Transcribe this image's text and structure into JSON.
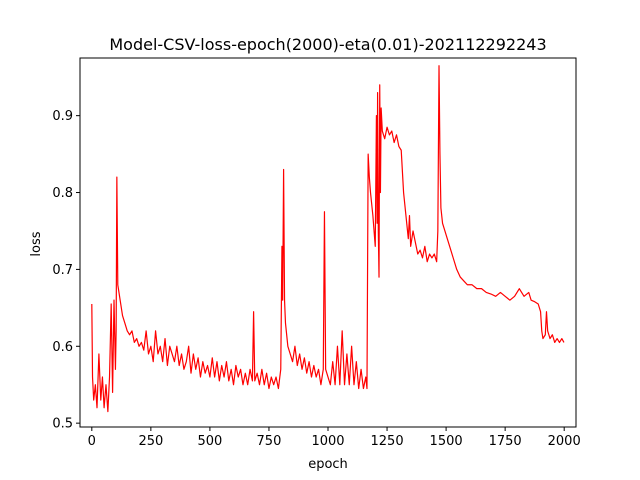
{
  "chart_data": {
    "type": "line",
    "title": "Model-CSV-loss-epoch(2000)-eta(0.01)-202112292243",
    "xlabel": "epoch",
    "ylabel": "loss",
    "xlim": [
      -50,
      2050
    ],
    "ylim": [
      0.495,
      0.975
    ],
    "x_ticks": [
      0,
      250,
      500,
      750,
      1000,
      1250,
      1500,
      1750,
      2000
    ],
    "x_tick_labels": [
      "0",
      "250",
      "500",
      "750",
      "1000",
      "1250",
      "1500",
      "1750",
      "2000"
    ],
    "y_ticks": [
      0.5,
      0.6,
      0.7,
      0.8,
      0.9
    ],
    "y_tick_labels": [
      "0.5",
      "0.6",
      "0.7",
      "0.8",
      "0.9"
    ],
    "grid": false,
    "legend": "none",
    "series": [
      {
        "color": "#ff0000",
        "points": [
          [
            0,
            0.655
          ],
          [
            3,
            0.56
          ],
          [
            8,
            0.53
          ],
          [
            15,
            0.55
          ],
          [
            22,
            0.52
          ],
          [
            30,
            0.59
          ],
          [
            38,
            0.53
          ],
          [
            45,
            0.56
          ],
          [
            52,
            0.52
          ],
          [
            60,
            0.55
          ],
          [
            68,
            0.515
          ],
          [
            75,
            0.56
          ],
          [
            82,
            0.655
          ],
          [
            88,
            0.54
          ],
          [
            94,
            0.66
          ],
          [
            100,
            0.57
          ],
          [
            103,
            0.62
          ],
          [
            106,
            0.82
          ],
          [
            110,
            0.68
          ],
          [
            115,
            0.67
          ],
          [
            120,
            0.66
          ],
          [
            130,
            0.64
          ],
          [
            140,
            0.63
          ],
          [
            150,
            0.62
          ],
          [
            160,
            0.615
          ],
          [
            170,
            0.62
          ],
          [
            180,
            0.605
          ],
          [
            190,
            0.61
          ],
          [
            200,
            0.6
          ],
          [
            210,
            0.605
          ],
          [
            220,
            0.595
          ],
          [
            230,
            0.62
          ],
          [
            240,
            0.59
          ],
          [
            250,
            0.6
          ],
          [
            260,
            0.58
          ],
          [
            270,
            0.62
          ],
          [
            280,
            0.59
          ],
          [
            290,
            0.6
          ],
          [
            300,
            0.58
          ],
          [
            310,
            0.61
          ],
          [
            320,
            0.575
          ],
          [
            330,
            0.6
          ],
          [
            340,
            0.59
          ],
          [
            350,
            0.58
          ],
          [
            360,
            0.6
          ],
          [
            370,
            0.575
          ],
          [
            380,
            0.59
          ],
          [
            390,
            0.57
          ],
          [
            400,
            0.58
          ],
          [
            410,
            0.6
          ],
          [
            420,
            0.565
          ],
          [
            430,
            0.59
          ],
          [
            440,
            0.57
          ],
          [
            450,
            0.585
          ],
          [
            460,
            0.56
          ],
          [
            470,
            0.58
          ],
          [
            480,
            0.565
          ],
          [
            490,
            0.575
          ],
          [
            500,
            0.56
          ],
          [
            510,
            0.585
          ],
          [
            520,
            0.56
          ],
          [
            530,
            0.58
          ],
          [
            540,
            0.555
          ],
          [
            550,
            0.575
          ],
          [
            560,
            0.56
          ],
          [
            570,
            0.58
          ],
          [
            580,
            0.555
          ],
          [
            590,
            0.57
          ],
          [
            600,
            0.55
          ],
          [
            610,
            0.575
          ],
          [
            620,
            0.56
          ],
          [
            630,
            0.57
          ],
          [
            640,
            0.55
          ],
          [
            650,
            0.565
          ],
          [
            660,
            0.55
          ],
          [
            670,
            0.57
          ],
          [
            680,
            0.555
          ],
          [
            685,
            0.645
          ],
          [
            690,
            0.555
          ],
          [
            700,
            0.565
          ],
          [
            710,
            0.55
          ],
          [
            720,
            0.57
          ],
          [
            730,
            0.55
          ],
          [
            740,
            0.565
          ],
          [
            750,
            0.545
          ],
          [
            760,
            0.56
          ],
          [
            770,
            0.55
          ],
          [
            780,
            0.56
          ],
          [
            790,
            0.545
          ],
          [
            800,
            0.57
          ],
          [
            805,
            0.73
          ],
          [
            808,
            0.66
          ],
          [
            812,
            0.83
          ],
          [
            816,
            0.66
          ],
          [
            820,
            0.63
          ],
          [
            830,
            0.6
          ],
          [
            840,
            0.59
          ],
          [
            850,
            0.58
          ],
          [
            860,
            0.6
          ],
          [
            870,
            0.575
          ],
          [
            880,
            0.59
          ],
          [
            890,
            0.57
          ],
          [
            900,
            0.585
          ],
          [
            910,
            0.565
          ],
          [
            920,
            0.58
          ],
          [
            930,
            0.56
          ],
          [
            940,
            0.575
          ],
          [
            950,
            0.56
          ],
          [
            960,
            0.57
          ],
          [
            970,
            0.55
          ],
          [
            980,
            0.57
          ],
          [
            985,
            0.775
          ],
          [
            990,
            0.57
          ],
          [
            1000,
            0.56
          ],
          [
            1010,
            0.55
          ],
          [
            1020,
            0.58
          ],
          [
            1030,
            0.55
          ],
          [
            1040,
            0.6
          ],
          [
            1050,
            0.55
          ],
          [
            1060,
            0.62
          ],
          [
            1070,
            0.55
          ],
          [
            1080,
            0.59
          ],
          [
            1090,
            0.55
          ],
          [
            1100,
            0.6
          ],
          [
            1110,
            0.55
          ],
          [
            1120,
            0.58
          ],
          [
            1130,
            0.545
          ],
          [
            1140,
            0.57
          ],
          [
            1150,
            0.545
          ],
          [
            1160,
            0.56
          ],
          [
            1165,
            0.545
          ],
          [
            1170,
            0.85
          ],
          [
            1175,
            0.82
          ],
          [
            1180,
            0.8
          ],
          [
            1190,
            0.77
          ],
          [
            1195,
            0.75
          ],
          [
            1200,
            0.73
          ],
          [
            1205,
            0.9
          ],
          [
            1208,
            0.76
          ],
          [
            1210,
            0.93
          ],
          [
            1213,
            0.75
          ],
          [
            1216,
            0.69
          ],
          [
            1219,
            0.94
          ],
          [
            1222,
            0.8
          ],
          [
            1225,
            0.91
          ],
          [
            1230,
            0.88
          ],
          [
            1240,
            0.87
          ],
          [
            1250,
            0.885
          ],
          [
            1260,
            0.875
          ],
          [
            1270,
            0.88
          ],
          [
            1280,
            0.865
          ],
          [
            1290,
            0.875
          ],
          [
            1300,
            0.86
          ],
          [
            1310,
            0.855
          ],
          [
            1320,
            0.8
          ],
          [
            1330,
            0.77
          ],
          [
            1340,
            0.74
          ],
          [
            1345,
            0.77
          ],
          [
            1350,
            0.73
          ],
          [
            1360,
            0.75
          ],
          [
            1370,
            0.735
          ],
          [
            1380,
            0.72
          ],
          [
            1390,
            0.725
          ],
          [
            1400,
            0.715
          ],
          [
            1410,
            0.73
          ],
          [
            1420,
            0.71
          ],
          [
            1430,
            0.72
          ],
          [
            1440,
            0.715
          ],
          [
            1450,
            0.72
          ],
          [
            1460,
            0.71
          ],
          [
            1465,
            0.75
          ],
          [
            1470,
            0.965
          ],
          [
            1474,
            0.85
          ],
          [
            1478,
            0.78
          ],
          [
            1485,
            0.76
          ],
          [
            1495,
            0.75
          ],
          [
            1505,
            0.74
          ],
          [
            1515,
            0.73
          ],
          [
            1530,
            0.715
          ],
          [
            1545,
            0.7
          ],
          [
            1560,
            0.69
          ],
          [
            1575,
            0.685
          ],
          [
            1590,
            0.68
          ],
          [
            1610,
            0.68
          ],
          [
            1630,
            0.675
          ],
          [
            1650,
            0.675
          ],
          [
            1670,
            0.67
          ],
          [
            1690,
            0.668
          ],
          [
            1710,
            0.665
          ],
          [
            1730,
            0.67
          ],
          [
            1750,
            0.665
          ],
          [
            1770,
            0.66
          ],
          [
            1790,
            0.665
          ],
          [
            1810,
            0.675
          ],
          [
            1830,
            0.665
          ],
          [
            1850,
            0.67
          ],
          [
            1860,
            0.66
          ],
          [
            1875,
            0.658
          ],
          [
            1890,
            0.655
          ],
          [
            1900,
            0.645
          ],
          [
            1905,
            0.62
          ],
          [
            1910,
            0.61
          ],
          [
            1920,
            0.615
          ],
          [
            1925,
            0.645
          ],
          [
            1930,
            0.62
          ],
          [
            1940,
            0.61
          ],
          [
            1950,
            0.615
          ],
          [
            1960,
            0.605
          ],
          [
            1970,
            0.61
          ],
          [
            1980,
            0.605
          ],
          [
            1990,
            0.61
          ],
          [
            1999,
            0.605
          ]
        ]
      }
    ]
  }
}
